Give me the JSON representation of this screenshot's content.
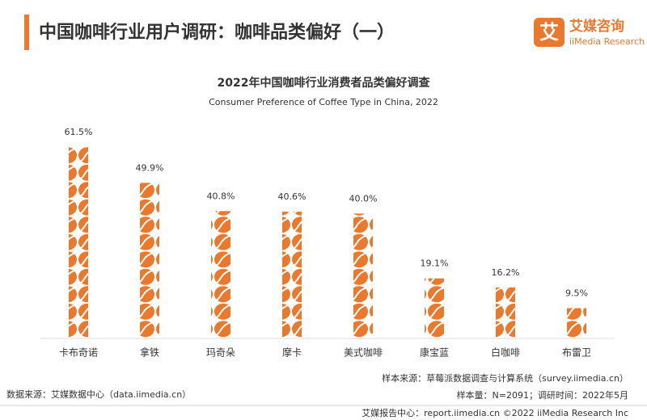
{
  "header": {
    "title": "中国咖啡行业用户调研：咖啡品类偏好（一）"
  },
  "logo": {
    "mark": "艾",
    "name": "艾媒咨询",
    "en": "iiMedia Research"
  },
  "chart_data": {
    "type": "pictograph",
    "title": "2022年中国咖啡行业消费者品类偏好调查",
    "subtitle": "Consumer Preference of Coffee Type in China, 2022",
    "categories": [
      "卡布奇诺",
      "拿铁",
      "玛奇朵",
      "摩卡",
      "美式咖啡",
      "康宝蓝",
      "白咖啡",
      "布雷卫"
    ],
    "values": [
      61.5,
      49.9,
      40.8,
      40.6,
      40.0,
      19.1,
      16.2,
      9.5
    ],
    "value_labels": [
      "61.5%",
      "49.9%",
      "40.8%",
      "40.6%",
      "40.0%",
      "19.1%",
      "16.2%",
      "9.5%"
    ],
    "color": "#e8792f"
  },
  "footer": {
    "source": "数据来源：艾媒数据中心（data.iimedia.cn）",
    "sample_source": "样本来源：草莓派数据调查与计算系统（survey.iimedia.cn）",
    "sample_size": "样本量：N=2091；调研时间：2022年5月",
    "report_center": "艾媒报告中心：report.iimedia.cn  ©2022  iiMedia Research  Inc"
  }
}
